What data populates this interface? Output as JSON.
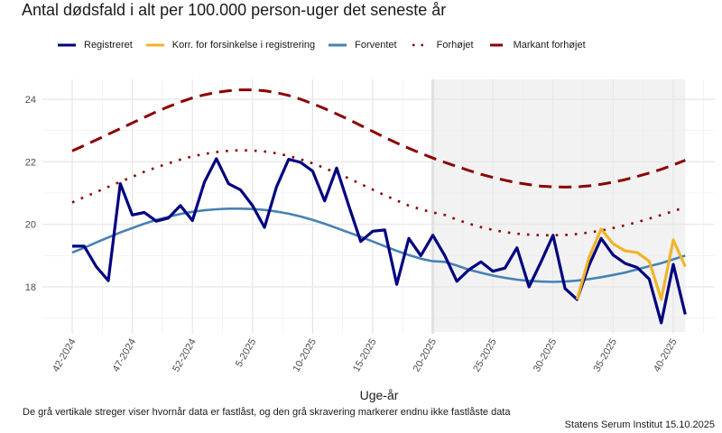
{
  "chart_data": {
    "type": "line",
    "title": "Antal dødsfald i alt per 100.000 person-uger det seneste år",
    "xlabel": "Uge-år",
    "ylabel": "",
    "ylim": [
      16.6,
      24.6
    ],
    "yticks": [
      18,
      20,
      22,
      24
    ],
    "grid": true,
    "legend_position": "top",
    "x": [
      "42-2024",
      "43-2024",
      "44-2024",
      "45-2024",
      "46-2024",
      "47-2024",
      "48-2024",
      "49-2024",
      "50-2024",
      "51-2024",
      "52-2024",
      "1-2025",
      "2-2025",
      "3-2025",
      "4-2025",
      "5-2025",
      "6-2025",
      "7-2025",
      "8-2025",
      "9-2025",
      "10-2025",
      "11-2025",
      "12-2025",
      "13-2025",
      "14-2025",
      "15-2025",
      "16-2025",
      "17-2025",
      "18-2025",
      "19-2025",
      "20-2025",
      "21-2025",
      "22-2025",
      "23-2025",
      "24-2025",
      "25-2025",
      "26-2025",
      "27-2025",
      "28-2025",
      "29-2025",
      "30-2025",
      "31-2025",
      "32-2025",
      "33-2025",
      "34-2025",
      "35-2025",
      "36-2025",
      "37-2025",
      "38-2025",
      "39-2025",
      "40-2025",
      "41-2025"
    ],
    "xticks": [
      "42-2024",
      "47-2024",
      "52-2024",
      "5-2025",
      "10-2025",
      "15-2025",
      "20-2025",
      "25-2025",
      "30-2025",
      "35-2025",
      "40-2025"
    ],
    "shaded_region": {
      "from": "20-2025",
      "to": "41-2025",
      "color": "#f2f2f2",
      "meaning": "endnu ikke fastlåste data"
    },
    "vertical_line": {
      "at": "20-2025",
      "color": "#e0e0e0"
    },
    "series": [
      {
        "name": "Registreret",
        "color": "#000080",
        "style": "solid",
        "values": [
          19.3,
          19.3,
          18.65,
          18.2,
          21.3,
          20.3,
          20.38,
          20.1,
          20.2,
          20.6,
          20.12,
          21.35,
          22.1,
          21.3,
          21.1,
          20.6,
          19.9,
          21.2,
          22.08,
          21.98,
          21.7,
          20.75,
          21.8,
          20.6,
          19.45,
          19.78,
          19.82,
          18.08,
          19.55,
          19.0,
          19.65,
          19.0,
          18.18,
          18.55,
          18.8,
          18.5,
          18.6,
          19.25,
          18.0,
          18.8,
          19.65,
          17.95,
          17.6,
          18.7,
          19.55,
          19.02,
          18.75,
          18.62,
          18.25,
          16.85,
          18.72,
          17.12
        ]
      },
      {
        "name": "Korr. for forsinkelse i registrering",
        "color": "#f0b429",
        "style": "solid",
        "values": [
          null,
          null,
          null,
          null,
          null,
          null,
          null,
          null,
          null,
          null,
          null,
          null,
          null,
          null,
          null,
          null,
          null,
          null,
          null,
          null,
          null,
          null,
          null,
          null,
          null,
          null,
          null,
          null,
          null,
          null,
          null,
          null,
          null,
          null,
          null,
          null,
          null,
          null,
          null,
          null,
          null,
          null,
          17.6,
          18.95,
          19.85,
          19.38,
          19.15,
          19.1,
          18.82,
          17.6,
          19.5,
          18.65
        ]
      },
      {
        "name": "Forventet",
        "color": "#4682b4",
        "style": "solid",
        "values": [
          19.1,
          19.25,
          19.42,
          19.58,
          19.74,
          19.88,
          20.02,
          20.14,
          20.24,
          20.33,
          20.4,
          20.45,
          20.48,
          20.5,
          20.5,
          20.49,
          20.46,
          20.41,
          20.34,
          20.25,
          20.14,
          20.02,
          19.88,
          19.74,
          19.6,
          19.45,
          19.3,
          19.15,
          19.02,
          18.9,
          18.82,
          18.8,
          18.68,
          18.55,
          18.45,
          18.36,
          18.29,
          18.23,
          18.19,
          18.17,
          18.16,
          18.17,
          18.2,
          18.25,
          18.31,
          18.38,
          18.46,
          18.56,
          18.66,
          18.76,
          18.88,
          19.0
        ]
      },
      {
        "name": "Forhøjet",
        "color": "#8b0000",
        "style": "dotted",
        "values": [
          20.7,
          20.87,
          21.03,
          21.2,
          21.36,
          21.52,
          21.68,
          21.82,
          21.95,
          22.07,
          22.17,
          22.25,
          22.31,
          22.35,
          22.37,
          22.36,
          22.33,
          22.27,
          22.19,
          22.08,
          21.95,
          21.8,
          21.64,
          21.47,
          21.29,
          21.11,
          20.93,
          20.76,
          20.6,
          20.48,
          20.38,
          20.3,
          20.15,
          20.02,
          19.91,
          19.82,
          19.75,
          19.7,
          19.67,
          19.65,
          19.65,
          19.66,
          19.69,
          19.74,
          19.8,
          19.88,
          19.97,
          20.07,
          20.18,
          20.3,
          20.42,
          20.55
        ]
      },
      {
        "name": "Markant forhøjet",
        "color": "#8b0000",
        "style": "dashed",
        "values": [
          22.35,
          22.52,
          22.7,
          22.88,
          23.06,
          23.24,
          23.42,
          23.6,
          23.76,
          23.91,
          24.04,
          24.14,
          24.22,
          24.27,
          24.3,
          24.3,
          24.27,
          24.21,
          24.12,
          24.0,
          23.86,
          23.7,
          23.53,
          23.35,
          23.16,
          22.97,
          22.78,
          22.6,
          22.43,
          22.27,
          22.12,
          21.98,
          21.85,
          21.72,
          21.6,
          21.5,
          21.41,
          21.33,
          21.27,
          21.22,
          21.2,
          21.19,
          21.2,
          21.23,
          21.28,
          21.35,
          21.43,
          21.53,
          21.64,
          21.76,
          21.9,
          22.05
        ]
      }
    ]
  },
  "legend": {
    "items": [
      {
        "label": "Registreret",
        "color": "#000080",
        "style": "solid"
      },
      {
        "label": "Korr. for forsinkelse i registrering",
        "color": "#f0b429",
        "style": "solid"
      },
      {
        "label": "Forventet",
        "color": "#4682b4",
        "style": "solid"
      },
      {
        "label": "Forhøjet",
        "color": "#8b0000",
        "style": "dotted"
      },
      {
        "label": "Markant forhøjet",
        "color": "#8b0000",
        "style": "dashed"
      }
    ]
  },
  "caption": "De grå vertikale streger viser hvornår data er fastlåst, og den grå skravering markerer endnu ikke fastlåste data",
  "source": "Statens Serum Institut  15.10.2025"
}
